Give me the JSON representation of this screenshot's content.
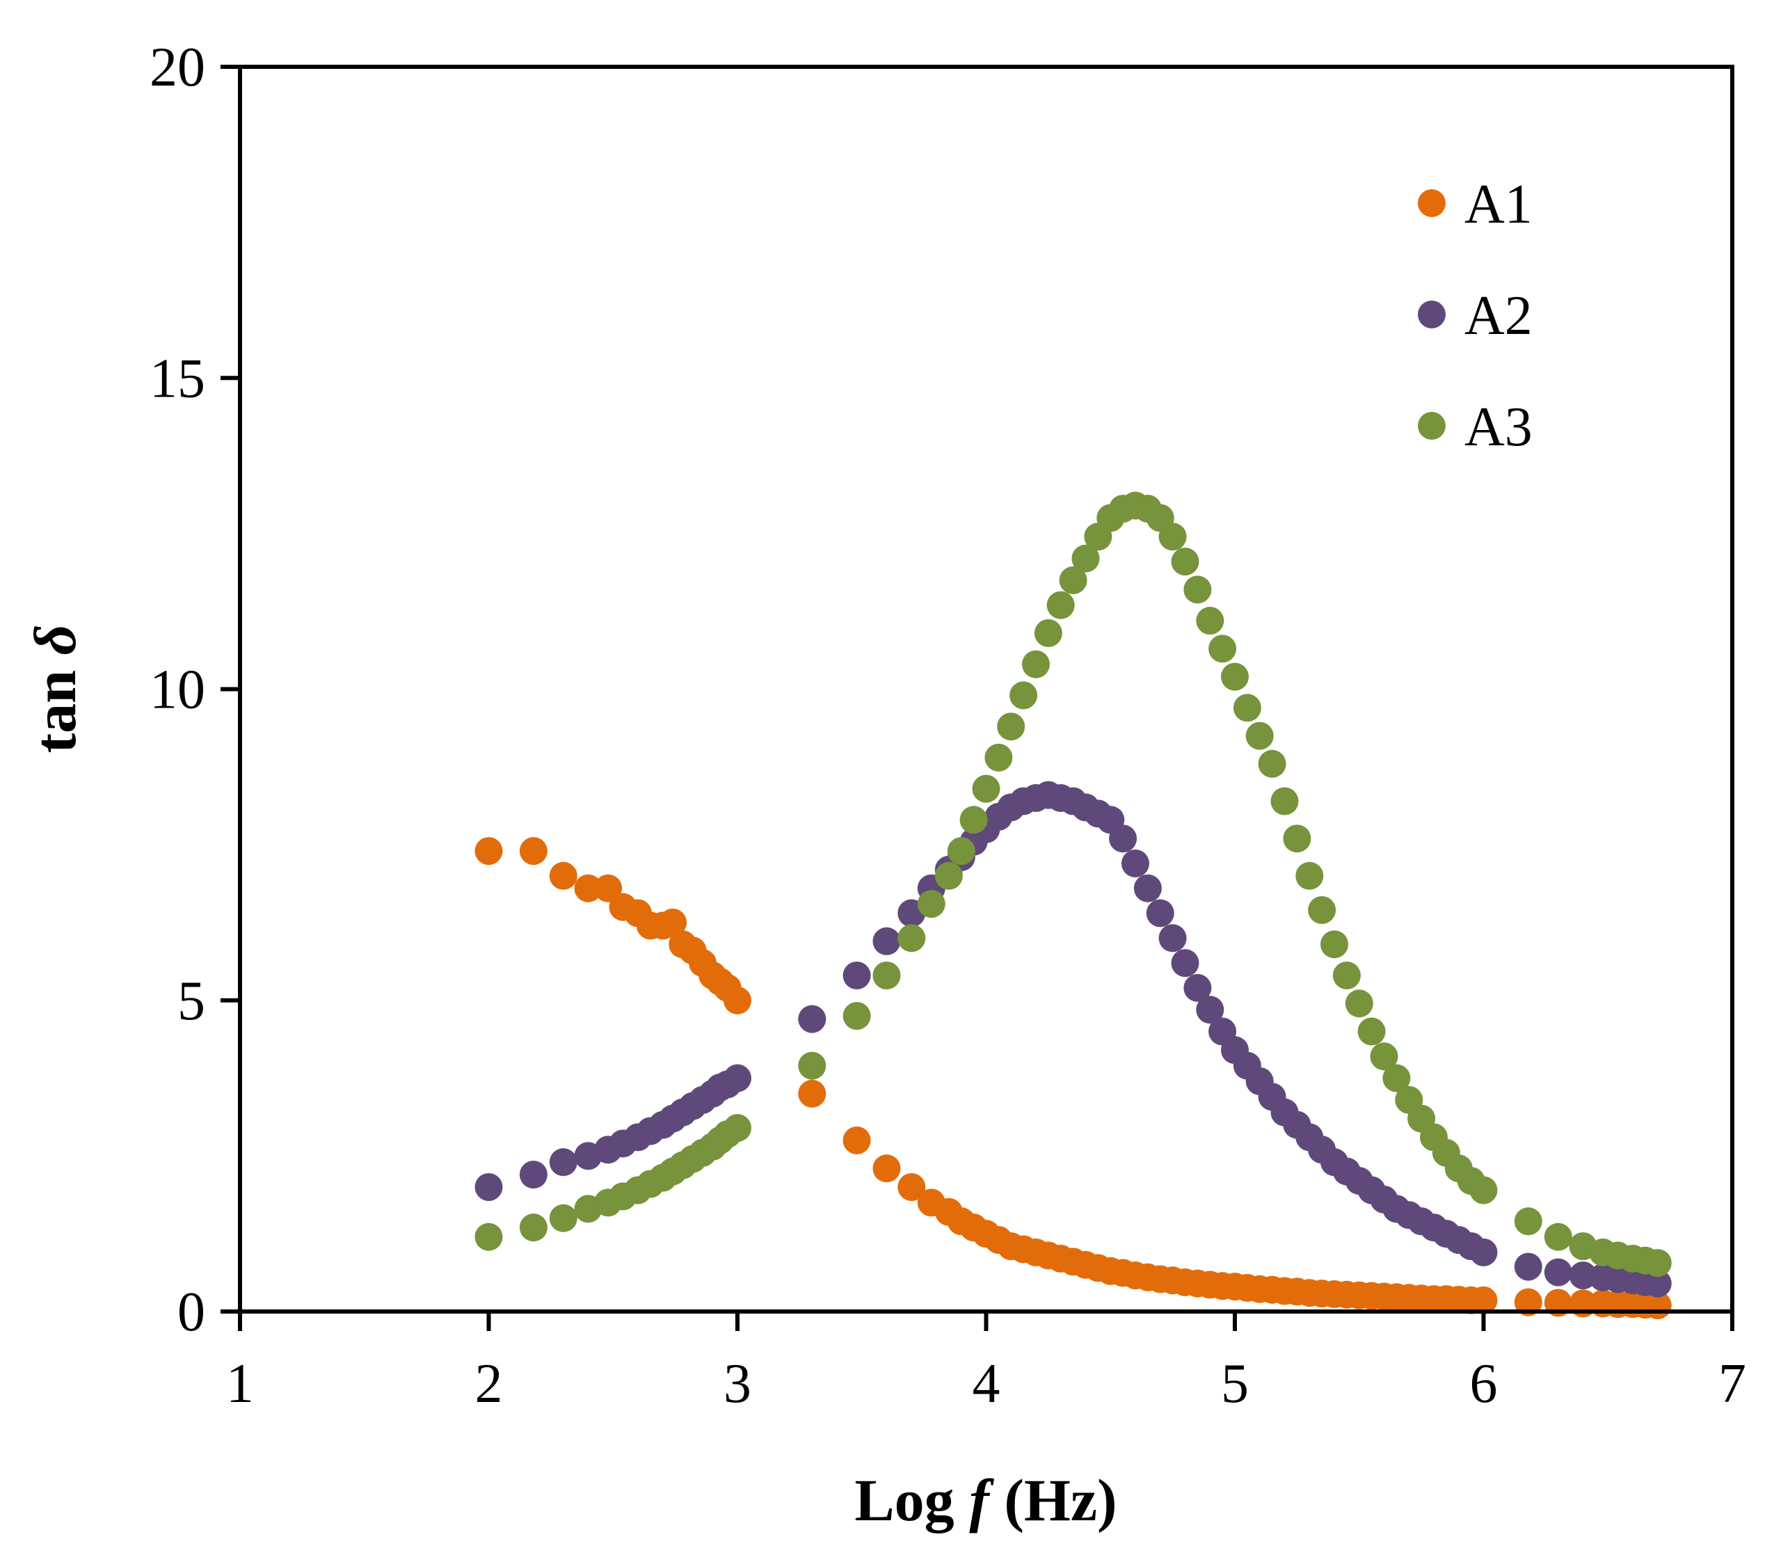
{
  "chart_data": {
    "type": "scatter",
    "title": "",
    "xlabel_prefix": "Log ",
    "xlabel_var": "f",
    "xlabel_suffix": " (Hz)",
    "ylabel_prefix": "tan ",
    "ylabel_var": "δ",
    "xlim": [
      1,
      7
    ],
    "ylim": [
      0,
      20
    ],
    "x_ticks": [
      "1",
      "2",
      "3",
      "4",
      "5",
      "6",
      "7"
    ],
    "y_ticks": [
      "0",
      "5",
      "10",
      "15",
      "20"
    ],
    "x_tick_values": [
      1,
      2,
      3,
      4,
      5,
      6,
      7
    ],
    "y_tick_values": [
      0,
      5,
      10,
      15,
      20
    ],
    "grid": false,
    "legend_position": "top-right",
    "series": [
      {
        "name": "A1",
        "color": "#E36C0A",
        "x": [
          2.0,
          2.18,
          2.3,
          2.4,
          2.48,
          2.54,
          2.6,
          2.65,
          2.7,
          2.74,
          2.78,
          2.82,
          2.86,
          2.9,
          2.93,
          2.96,
          3.0,
          3.3,
          3.48,
          3.6,
          3.7,
          3.78,
          3.85,
          3.9,
          3.95,
          4.0,
          4.05,
          4.1,
          4.15,
          4.2,
          4.25,
          4.3,
          4.35,
          4.4,
          4.45,
          4.5,
          4.55,
          4.6,
          4.65,
          4.7,
          4.75,
          4.8,
          4.85,
          4.9,
          4.95,
          5.0,
          5.05,
          5.1,
          5.15,
          5.2,
          5.25,
          5.3,
          5.35,
          5.4,
          5.45,
          5.5,
          5.55,
          5.6,
          5.65,
          5.7,
          5.75,
          5.8,
          5.85,
          5.9,
          5.95,
          6.0,
          6.18,
          6.3,
          6.4,
          6.48,
          6.54,
          6.6,
          6.65,
          6.7
        ],
        "y": [
          7.4,
          7.4,
          7.0,
          6.8,
          6.8,
          6.5,
          6.4,
          6.2,
          6.2,
          6.25,
          5.9,
          5.8,
          5.6,
          5.4,
          5.3,
          5.2,
          5.0,
          3.5,
          2.75,
          2.3,
          2.0,
          1.75,
          1.6,
          1.45,
          1.35,
          1.25,
          1.15,
          1.05,
          1.0,
          0.95,
          0.9,
          0.85,
          0.8,
          0.75,
          0.7,
          0.65,
          0.62,
          0.58,
          0.55,
          0.52,
          0.5,
          0.47,
          0.45,
          0.43,
          0.41,
          0.4,
          0.38,
          0.36,
          0.35,
          0.33,
          0.32,
          0.3,
          0.29,
          0.28,
          0.27,
          0.26,
          0.25,
          0.24,
          0.23,
          0.22,
          0.21,
          0.2,
          0.2,
          0.19,
          0.18,
          0.18,
          0.15,
          0.14,
          0.13,
          0.13,
          0.12,
          0.12,
          0.11,
          0.1
        ]
      },
      {
        "name": "A2",
        "color": "#5F497A",
        "x": [
          2.0,
          2.18,
          2.3,
          2.4,
          2.48,
          2.54,
          2.6,
          2.65,
          2.7,
          2.74,
          2.78,
          2.82,
          2.86,
          2.9,
          2.93,
          2.96,
          3.0,
          3.3,
          3.48,
          3.6,
          3.7,
          3.78,
          3.85,
          3.9,
          3.95,
          4.0,
          4.05,
          4.1,
          4.15,
          4.2,
          4.25,
          4.3,
          4.35,
          4.4,
          4.45,
          4.5,
          4.55,
          4.6,
          4.65,
          4.7,
          4.75,
          4.8,
          4.85,
          4.9,
          4.95,
          5.0,
          5.05,
          5.1,
          5.15,
          5.2,
          5.25,
          5.3,
          5.35,
          5.4,
          5.45,
          5.5,
          5.55,
          5.6,
          5.65,
          5.7,
          5.75,
          5.8,
          5.85,
          5.9,
          5.95,
          6.0,
          6.18,
          6.3,
          6.4,
          6.48,
          6.54,
          6.6,
          6.65,
          6.7
        ],
        "y": [
          2.0,
          2.2,
          2.4,
          2.5,
          2.6,
          2.7,
          2.8,
          2.9,
          3.0,
          3.1,
          3.2,
          3.3,
          3.4,
          3.5,
          3.6,
          3.65,
          3.75,
          4.7,
          5.4,
          5.95,
          6.4,
          6.8,
          7.1,
          7.3,
          7.55,
          7.75,
          7.95,
          8.1,
          8.2,
          8.25,
          8.3,
          8.25,
          8.2,
          8.1,
          8.0,
          7.9,
          7.6,
          7.2,
          6.8,
          6.4,
          6.0,
          5.6,
          5.2,
          4.85,
          4.5,
          4.2,
          3.95,
          3.7,
          3.45,
          3.2,
          3.0,
          2.8,
          2.6,
          2.4,
          2.25,
          2.1,
          1.95,
          1.8,
          1.65,
          1.55,
          1.45,
          1.35,
          1.25,
          1.15,
          1.05,
          0.95,
          0.72,
          0.63,
          0.58,
          0.55,
          0.52,
          0.5,
          0.47,
          0.45
        ]
      },
      {
        "name": "A3",
        "color": "#77933C",
        "x": [
          2.0,
          2.18,
          2.3,
          2.4,
          2.48,
          2.54,
          2.6,
          2.65,
          2.7,
          2.74,
          2.78,
          2.82,
          2.86,
          2.9,
          2.93,
          2.96,
          3.0,
          3.3,
          3.48,
          3.6,
          3.7,
          3.78,
          3.85,
          3.9,
          3.95,
          4.0,
          4.05,
          4.1,
          4.15,
          4.2,
          4.25,
          4.3,
          4.35,
          4.4,
          4.45,
          4.5,
          4.55,
          4.6,
          4.65,
          4.7,
          4.75,
          4.8,
          4.85,
          4.9,
          4.95,
          5.0,
          5.05,
          5.1,
          5.15,
          5.2,
          5.25,
          5.3,
          5.35,
          5.4,
          5.45,
          5.5,
          5.55,
          5.6,
          5.65,
          5.7,
          5.75,
          5.8,
          5.85,
          5.9,
          5.95,
          6.0,
          6.18,
          6.3,
          6.4,
          6.48,
          6.54,
          6.6,
          6.65,
          6.7
        ],
        "y": [
          1.2,
          1.35,
          1.5,
          1.65,
          1.75,
          1.85,
          1.95,
          2.05,
          2.15,
          2.25,
          2.35,
          2.45,
          2.55,
          2.65,
          2.75,
          2.85,
          2.95,
          3.95,
          4.75,
          5.4,
          6.0,
          6.55,
          7.0,
          7.4,
          7.9,
          8.4,
          8.9,
          9.4,
          9.9,
          10.4,
          10.9,
          11.35,
          11.75,
          12.1,
          12.45,
          12.75,
          12.9,
          12.95,
          12.9,
          12.75,
          12.45,
          12.05,
          11.6,
          11.1,
          10.65,
          10.2,
          9.7,
          9.25,
          8.8,
          8.2,
          7.6,
          7.0,
          6.45,
          5.9,
          5.4,
          4.95,
          4.5,
          4.1,
          3.75,
          3.4,
          3.1,
          2.8,
          2.55,
          2.3,
          2.1,
          1.95,
          1.45,
          1.2,
          1.05,
          0.95,
          0.9,
          0.85,
          0.82,
          0.78
        ]
      }
    ]
  }
}
